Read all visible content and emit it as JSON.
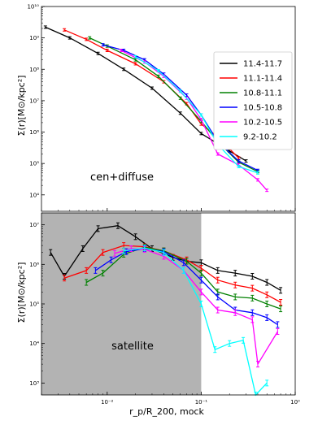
{
  "chart_data": [
    {
      "type": "line",
      "title": "",
      "annotation": "cen+diffuse",
      "xlabel": "",
      "ylabel": "Σ(r)[M⊙/kpc²]",
      "xscale": "log",
      "yscale": "log",
      "xlim": [
        0.002,
        1.0
      ],
      "ylim": [
        3000,
        10000000000
      ],
      "grid": false,
      "legend_position": "top-right",
      "ytick_labels": [
        "10⁴",
        "10⁵",
        "10⁶",
        "10⁷",
        "10⁸",
        "10⁹",
        "10¹⁰"
      ],
      "series": [
        {
          "name": "11.4-11.7",
          "color": "#000000",
          "x": [
            0.0022,
            0.004,
            0.008,
            0.015,
            0.03,
            0.06,
            0.1,
            0.2,
            0.3
          ],
          "y": [
            2200000000,
            1000000000,
            320000000,
            100000000,
            25000000,
            4000000,
            900000,
            250000,
            120000
          ]
        },
        {
          "name": "11.1-11.4",
          "color": "#ff0000",
          "x": [
            0.0035,
            0.006,
            0.01,
            0.02,
            0.04,
            0.07,
            0.1,
            0.15,
            0.25
          ],
          "y": [
            1800000000,
            900000000,
            400000000,
            150000000,
            40000000,
            8000000,
            1800000,
            700000,
            150000
          ]
        },
        {
          "name": "10.8-11.1",
          "color": "#008000",
          "x": [
            0.0065,
            0.01,
            0.02,
            0.035,
            0.06,
            0.1,
            0.15,
            0.25,
            0.4
          ],
          "y": [
            1000000000,
            550000000,
            200000000,
            60000000,
            12000000,
            2200000,
            500000,
            110000,
            55000
          ]
        },
        {
          "name": "10.5-10.8",
          "color": "#0000ff",
          "x": [
            0.009,
            0.015,
            0.025,
            0.04,
            0.07,
            0.1,
            0.15,
            0.25,
            0.4
          ],
          "y": [
            600000000,
            400000000,
            200000000,
            70000000,
            15000000,
            3500000,
            500000,
            120000,
            60000
          ]
        },
        {
          "name": "10.2-10.5",
          "color": "#ff00ff",
          "x": [
            0.014,
            0.025,
            0.04,
            0.07,
            0.1,
            0.15,
            0.25,
            0.4,
            0.5
          ],
          "y": [
            400000000,
            170000000,
            60000000,
            12000000,
            2500000,
            200000,
            90000,
            30000,
            14000
          ]
        },
        {
          "name": "9.2-10.2",
          "color": "#00ffff",
          "x": [
            0.02,
            0.035,
            0.06,
            0.1,
            0.15,
            0.25,
            0.4
          ],
          "y": [
            250000000,
            90000000,
            20000000,
            3500000,
            400000,
            80000,
            50000
          ]
        }
      ]
    },
    {
      "type": "line",
      "title": "",
      "annotation": "satellite",
      "xlabel": "r_p/R_200, mock",
      "ylabel": "Σ(r)[M⊙/kpc²]",
      "xscale": "log",
      "yscale": "log",
      "xlim": [
        0.002,
        1.0
      ],
      "ylim": [
        500,
        20000000
      ],
      "grid": false,
      "shaded_region_x": [
        0.002,
        0.1
      ],
      "ytick_labels": [
        "10³",
        "10⁴",
        "10⁵",
        "10⁶",
        "10⁷"
      ],
      "xtick_labels": [
        "10⁻²",
        "10⁻¹",
        "10⁰"
      ],
      "series": [
        {
          "name": "11.4-11.7",
          "color": "#000000",
          "x": [
            0.0025,
            0.0035,
            0.0055,
            0.008,
            0.013,
            0.02,
            0.03,
            0.05,
            0.07,
            0.1,
            0.15,
            0.23,
            0.35,
            0.5,
            0.7
          ],
          "y": [
            2000000,
            500000,
            2500000,
            8000000,
            9500000,
            5000000,
            2500000,
            1500000,
            1200000,
            1100000,
            700000,
            600000,
            500000,
            350000,
            220000
          ]
        },
        {
          "name": "11.1-11.4",
          "color": "#ff0000",
          "x": [
            0.0035,
            0.006,
            0.009,
            0.015,
            0.025,
            0.04,
            0.07,
            0.1,
            0.15,
            0.23,
            0.35,
            0.5,
            0.7
          ],
          "y": [
            450000,
            700000,
            2000000,
            3000000,
            2800000,
            2200000,
            1300000,
            800000,
            400000,
            300000,
            250000,
            170000,
            110000
          ]
        },
        {
          "name": "10.8-11.1",
          "color": "#008000",
          "x": [
            0.006,
            0.009,
            0.015,
            0.025,
            0.04,
            0.07,
            0.1,
            0.15,
            0.23,
            0.35,
            0.5,
            0.7
          ],
          "y": [
            350000,
            600000,
            1800000,
            2700000,
            2200000,
            1200000,
            600000,
            200000,
            150000,
            140000,
            100000,
            75000
          ]
        },
        {
          "name": "10.5-10.8",
          "color": "#0000ff",
          "x": [
            0.0075,
            0.011,
            0.016,
            0.025,
            0.04,
            0.065,
            0.1,
            0.15,
            0.23,
            0.35,
            0.5,
            0.65
          ],
          "y": [
            700000,
            1300000,
            2100000,
            2500000,
            2100000,
            1100000,
            400000,
            150000,
            70000,
            60000,
            45000,
            30000
          ]
        },
        {
          "name": "10.2-10.5",
          "color": "#ff00ff",
          "x": [
            0.012,
            0.018,
            0.025,
            0.04,
            0.065,
            0.1,
            0.15,
            0.23,
            0.35,
            0.4,
            0.65
          ],
          "y": [
            1900000,
            2500000,
            2400000,
            1600000,
            700000,
            200000,
            70000,
            60000,
            40000,
            3000,
            20000
          ]
        },
        {
          "name": "9.2-10.2",
          "color": "#00ffff",
          "x": [
            0.015,
            0.025,
            0.04,
            0.065,
            0.1,
            0.14,
            0.2,
            0.28,
            0.38,
            0.5
          ],
          "y": [
            2200000,
            2600000,
            2000000,
            700000,
            100000,
            7000,
            10000,
            12000,
            500,
            1000
          ]
        }
      ]
    }
  ]
}
